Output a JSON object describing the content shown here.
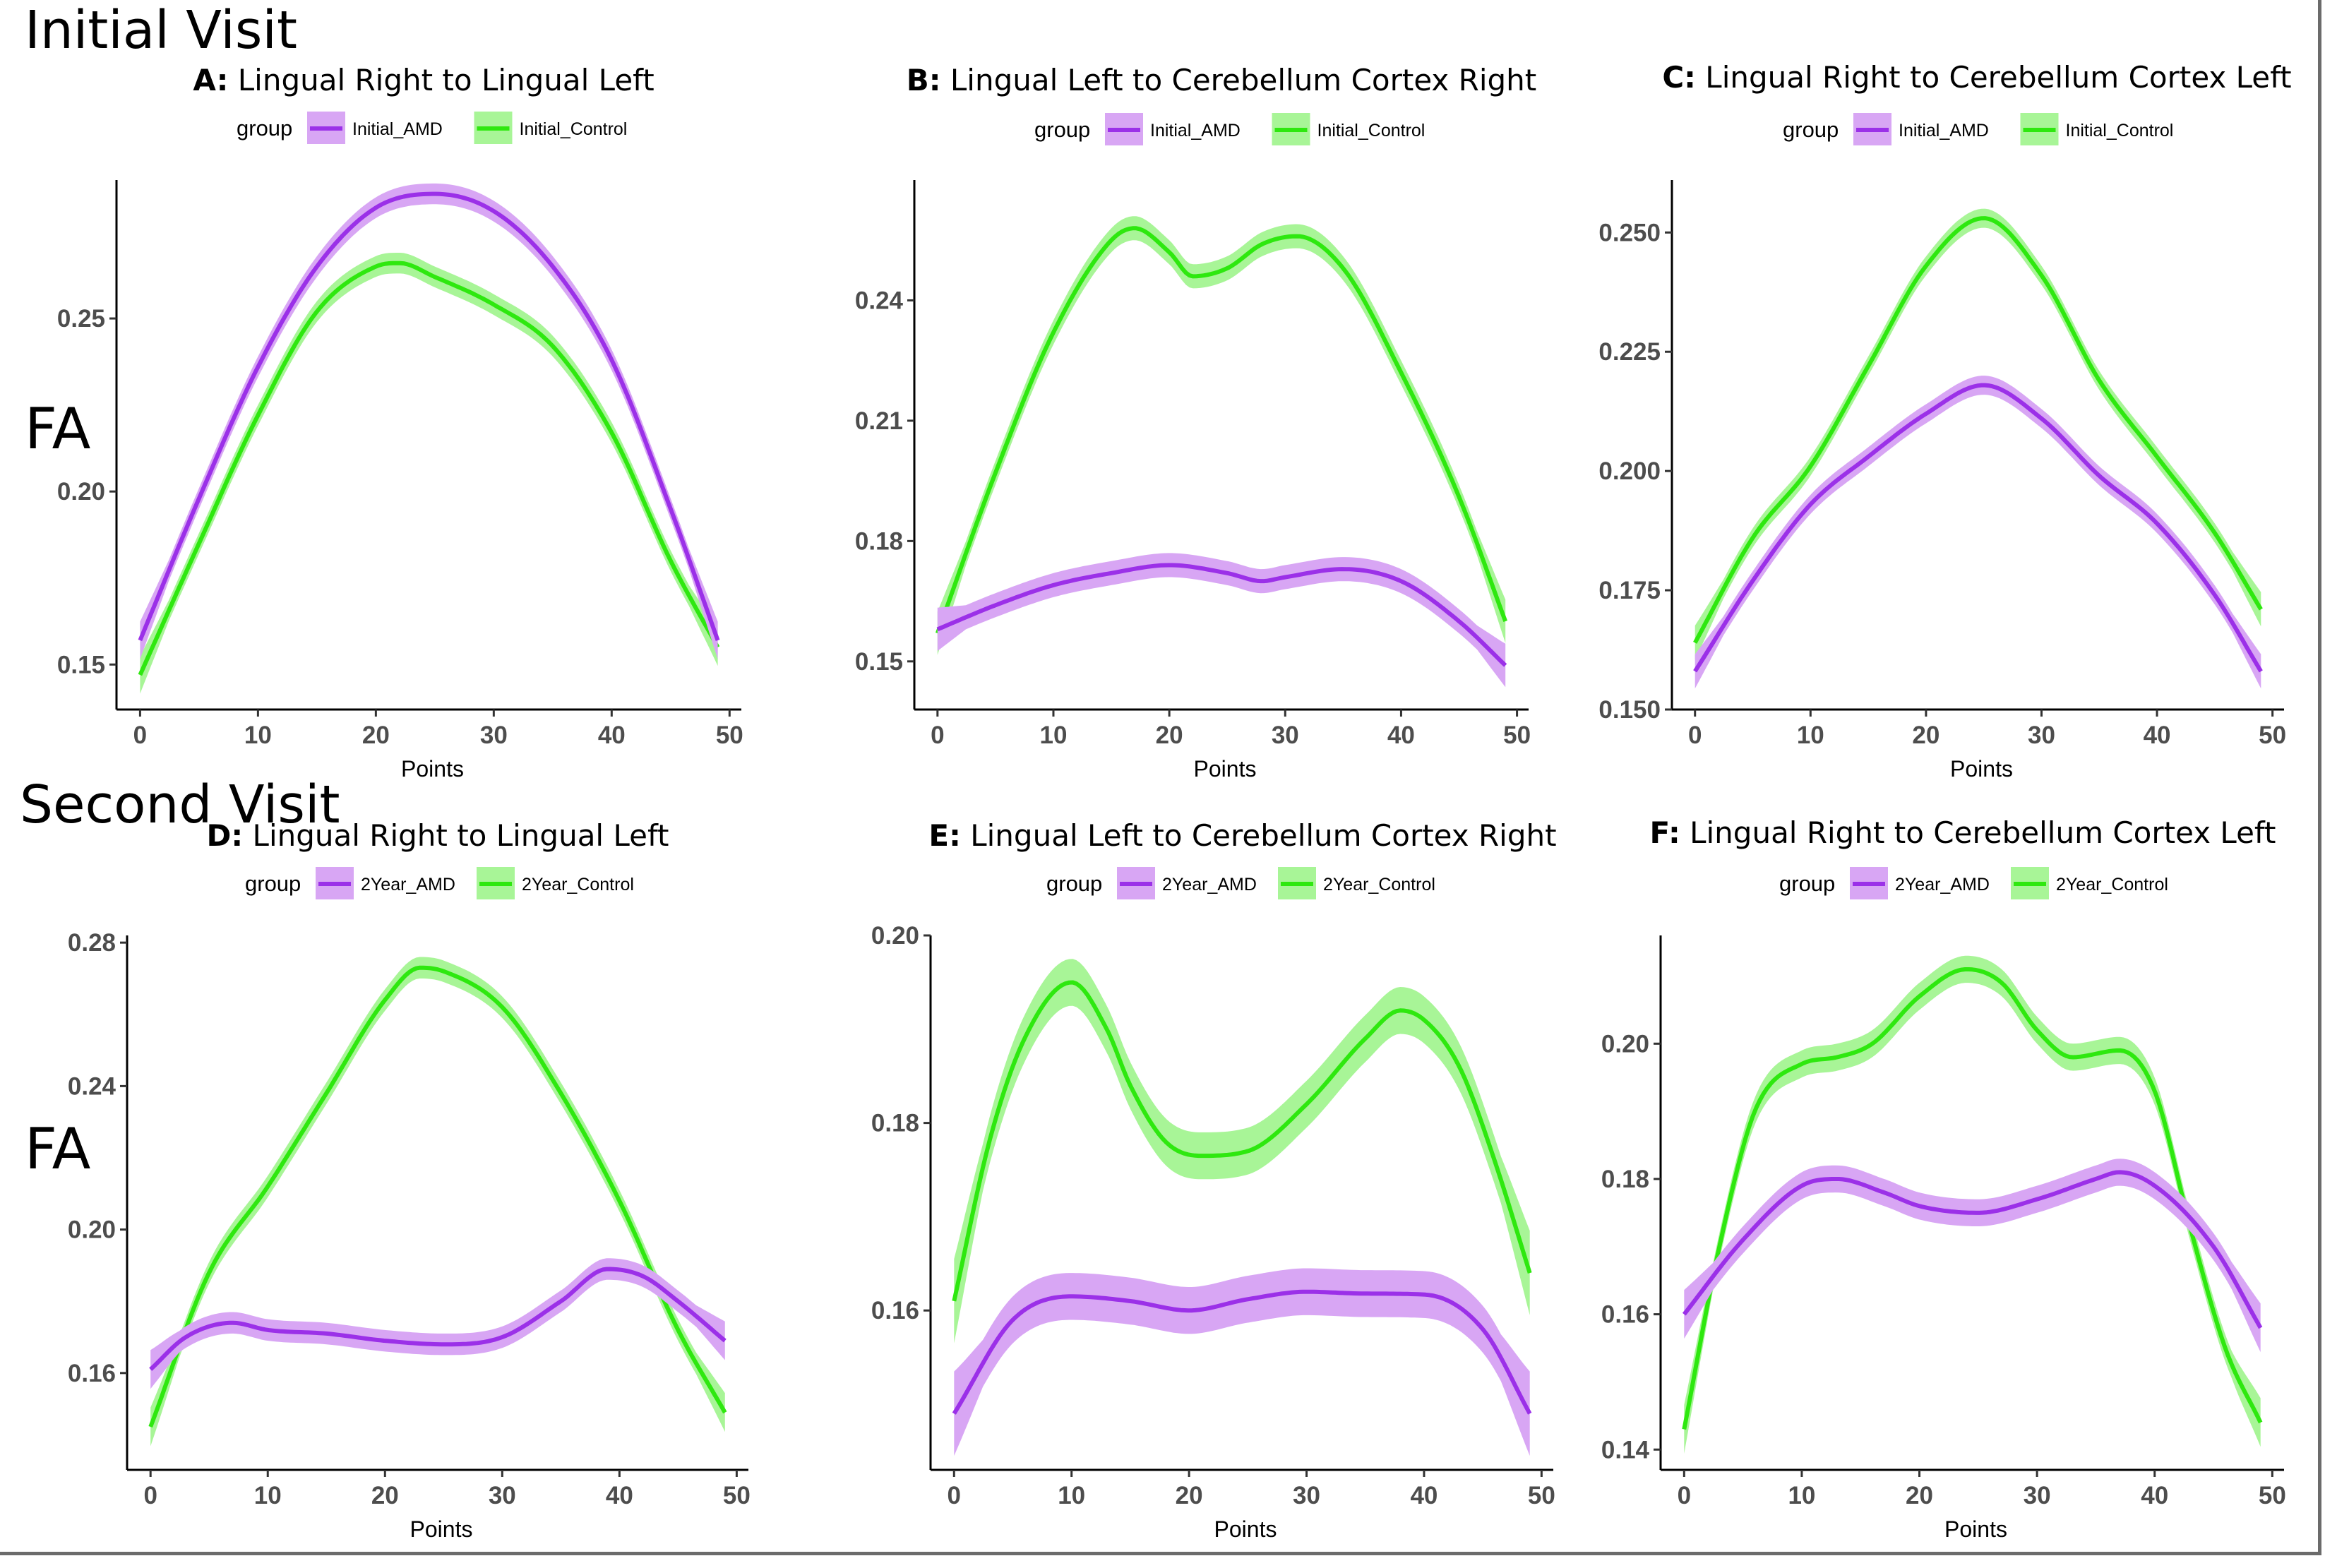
{
  "figure": {
    "row_titles": [
      "Initial Visit",
      "Second Visit"
    ],
    "ylabel_side": "FA",
    "legend_title": "group",
    "colors": {
      "amd": "#9b30e8",
      "amd_band": "#d8a6f4",
      "control": "#2ee80f",
      "control_band": "#a8f597",
      "axis": "#000000",
      "tick_text": "#4d4d4d"
    }
  },
  "chart_data": [
    {
      "type": "line",
      "panel": "A",
      "title": "Lingual Right to Lingual Left",
      "xlabel": "Points",
      "ylabel": "FA",
      "xlim": [
        -2,
        51
      ],
      "ylim": [
        0.137,
        0.29
      ],
      "xticks": [
        0,
        10,
        20,
        30,
        40,
        50
      ],
      "yticks": [
        0.15,
        0.2,
        0.25
      ],
      "ytick_labels": [
        "0.15",
        "0.20",
        "0.25"
      ],
      "band": 0.003,
      "series": [
        {
          "name": "Initial_AMD",
          "key": "amd",
          "x": [
            0,
            5,
            10,
            15,
            20,
            25,
            30,
            35,
            40,
            45,
            49
          ],
          "y": [
            0.157,
            0.198,
            0.236,
            0.265,
            0.282,
            0.286,
            0.281,
            0.265,
            0.238,
            0.195,
            0.157
          ]
        },
        {
          "name": "Initial_Control",
          "key": "control",
          "x": [
            0,
            5,
            10,
            15,
            20,
            22,
            25,
            30,
            35,
            40,
            45,
            49
          ],
          "y": [
            0.147,
            0.185,
            0.222,
            0.252,
            0.265,
            0.266,
            0.262,
            0.254,
            0.242,
            0.217,
            0.18,
            0.155
          ]
        }
      ]
    },
    {
      "type": "line",
      "panel": "B",
      "title": "Lingual Left to Cerebellum Cortex Right",
      "xlabel": "Points",
      "ylabel": "",
      "xlim": [
        -2,
        51
      ],
      "ylim": [
        0.138,
        0.27
      ],
      "xticks": [
        0,
        10,
        20,
        30,
        40,
        50
      ],
      "yticks": [
        0.15,
        0.18,
        0.21,
        0.24
      ],
      "ytick_labels": [
        "0.15",
        "0.18",
        "0.21",
        "0.24"
      ],
      "band": 0.003,
      "series": [
        {
          "name": "Initial_AMD",
          "key": "amd",
          "x": [
            0,
            5,
            10,
            15,
            20,
            25,
            28,
            30,
            35,
            40,
            45,
            49
          ],
          "y": [
            0.158,
            0.164,
            0.169,
            0.172,
            0.174,
            0.172,
            0.17,
            0.171,
            0.173,
            0.17,
            0.16,
            0.149
          ]
        },
        {
          "name": "Initial_Control",
          "key": "control",
          "x": [
            0,
            5,
            10,
            15,
            17,
            20,
            22,
            25,
            28,
            31,
            35,
            40,
            45,
            49
          ],
          "y": [
            0.157,
            0.197,
            0.232,
            0.255,
            0.258,
            0.252,
            0.246,
            0.248,
            0.254,
            0.256,
            0.248,
            0.222,
            0.191,
            0.16
          ]
        }
      ]
    },
    {
      "type": "line",
      "panel": "C",
      "title": "Lingual Right to Cerebellum Cortex Left",
      "xlabel": "Points",
      "ylabel": "",
      "xlim": [
        -2,
        51
      ],
      "ylim": [
        0.15,
        0.261
      ],
      "xticks": [
        0,
        10,
        20,
        30,
        40,
        50
      ],
      "yticks": [
        0.15,
        0.175,
        0.2,
        0.225,
        0.25
      ],
      "ytick_labels": [
        "0.150",
        "0.175",
        "0.200",
        "0.225",
        "0.250"
      ],
      "band": 0.002,
      "series": [
        {
          "name": "Initial_AMD",
          "key": "amd",
          "x": [
            0,
            5,
            10,
            15,
            20,
            25,
            30,
            35,
            40,
            45,
            49
          ],
          "y": [
            0.158,
            0.177,
            0.193,
            0.203,
            0.212,
            0.218,
            0.211,
            0.199,
            0.189,
            0.174,
            0.158
          ]
        },
        {
          "name": "Initial_Control",
          "key": "control",
          "x": [
            0,
            5,
            10,
            15,
            20,
            25,
            30,
            35,
            40,
            45,
            49
          ],
          "y": [
            0.164,
            0.186,
            0.201,
            0.222,
            0.243,
            0.253,
            0.241,
            0.219,
            0.203,
            0.187,
            0.171
          ]
        }
      ]
    },
    {
      "type": "line",
      "panel": "D",
      "title": "Lingual Right to Lingual Left",
      "xlabel": "Points",
      "ylabel": "FA",
      "xlim": [
        -2,
        51
      ],
      "ylim": [
        0.133,
        0.282
      ],
      "xticks": [
        0,
        10,
        20,
        30,
        40,
        50
      ],
      "yticks": [
        0.16,
        0.2,
        0.24,
        0.28
      ],
      "ytick_labels": [
        "0.16",
        "0.20",
        "0.24",
        "0.28"
      ],
      "band": 0.003,
      "series": [
        {
          "name": "2Year_AMD",
          "key": "amd",
          "x": [
            0,
            3,
            7,
            10,
            15,
            20,
            25,
            30,
            35,
            39,
            42,
            45,
            49
          ],
          "y": [
            0.161,
            0.17,
            0.174,
            0.172,
            0.171,
            0.169,
            0.168,
            0.17,
            0.18,
            0.189,
            0.187,
            0.18,
            0.169
          ]
        },
        {
          "name": "2Year_Control",
          "key": "control",
          "x": [
            0,
            5,
            10,
            15,
            20,
            23,
            25,
            30,
            35,
            40,
            45,
            49
          ],
          "y": [
            0.145,
            0.188,
            0.212,
            0.238,
            0.264,
            0.273,
            0.272,
            0.262,
            0.238,
            0.208,
            0.172,
            0.149
          ]
        }
      ]
    },
    {
      "type": "line",
      "panel": "E",
      "title": "Lingual Left to Cerebellum Cortex Right",
      "xlabel": "Points",
      "ylabel": "",
      "xlim": [
        -2,
        51
      ],
      "ylim": [
        0.143,
        0.2
      ],
      "xticks": [
        0,
        10,
        20,
        30,
        40,
        50
      ],
      "yticks": [
        0.16,
        0.18,
        0.2
      ],
      "ytick_labels": [
        "0.16",
        "0.18",
        "0.20"
      ],
      "band": 0.0025,
      "series": [
        {
          "name": "2Year_AMD",
          "key": "amd",
          "x": [
            0,
            5,
            10,
            15,
            20,
            25,
            30,
            35,
            40,
            45,
            49
          ],
          "y": [
            0.149,
            0.159,
            0.1615,
            0.161,
            0.16,
            0.1612,
            0.162,
            0.1618,
            0.1617,
            0.158,
            0.149
          ]
        },
        {
          "name": "2Year_Control",
          "key": "control",
          "x": [
            0,
            3,
            6,
            10,
            13,
            15,
            18,
            21,
            25,
            30,
            35,
            38,
            40,
            43,
            46,
            49
          ],
          "y": [
            0.161,
            0.178,
            0.189,
            0.195,
            0.19,
            0.184,
            0.178,
            0.1765,
            0.177,
            0.182,
            0.189,
            0.192,
            0.191,
            0.186,
            0.176,
            0.164
          ]
        }
      ]
    },
    {
      "type": "line",
      "panel": "F",
      "title": "Lingual Right to Cerebellum Cortex Left",
      "xlabel": "Points",
      "ylabel": "",
      "xlim": [
        -2,
        51
      ],
      "ylim": [
        0.137,
        0.216
      ],
      "xticks": [
        0,
        10,
        20,
        30,
        40,
        50
      ],
      "yticks": [
        0.14,
        0.16,
        0.18,
        0.2
      ],
      "ytick_labels": [
        "0.14",
        "0.16",
        "0.18",
        "0.20"
      ],
      "band": 0.002,
      "series": [
        {
          "name": "2Year_AMD",
          "key": "amd",
          "x": [
            0,
            5,
            10,
            13,
            17,
            20,
            25,
            30,
            35,
            37,
            40,
            45,
            49
          ],
          "y": [
            0.16,
            0.171,
            0.179,
            0.18,
            0.178,
            0.176,
            0.175,
            0.177,
            0.18,
            0.181,
            0.179,
            0.17,
            0.158
          ]
        },
        {
          "name": "2Year_Control",
          "key": "control",
          "x": [
            0,
            3,
            6,
            10,
            13,
            16,
            20,
            24,
            27,
            30,
            33,
            37,
            40,
            43,
            46,
            49
          ],
          "y": [
            0.143,
            0.17,
            0.19,
            0.197,
            0.198,
            0.2,
            0.207,
            0.211,
            0.209,
            0.202,
            0.198,
            0.199,
            0.193,
            0.173,
            0.155,
            0.144
          ]
        }
      ]
    }
  ]
}
